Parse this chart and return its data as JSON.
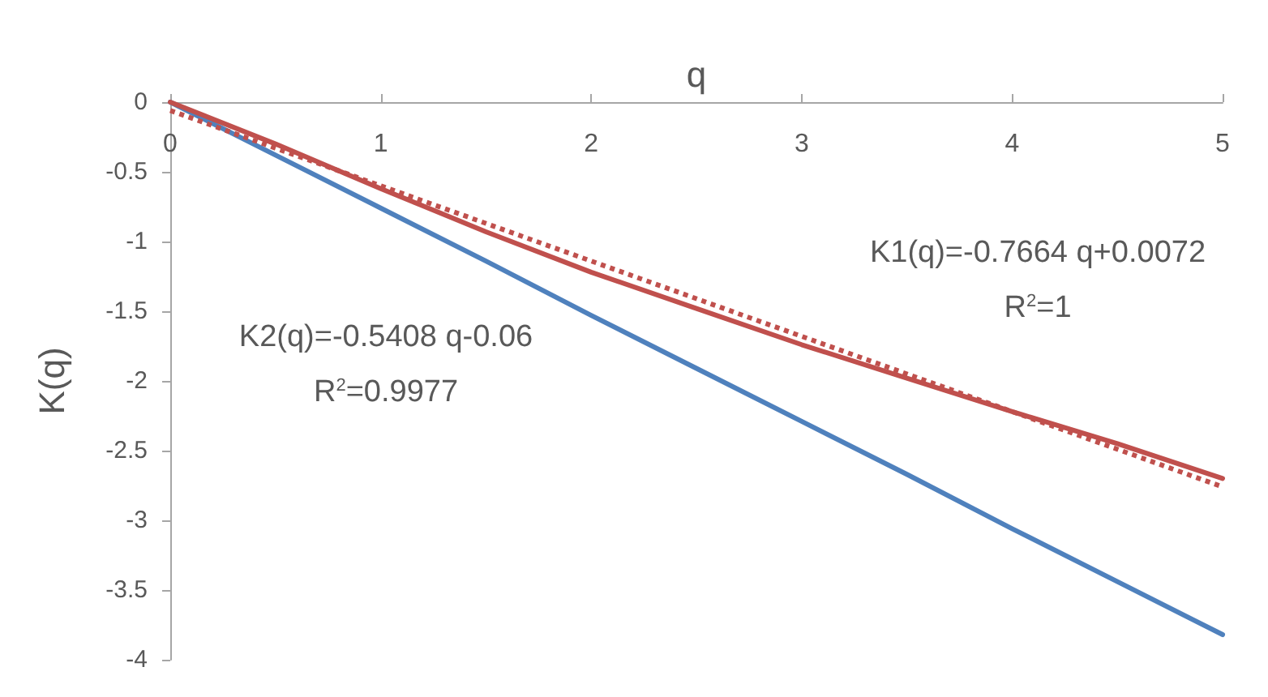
{
  "chart_data": {
    "type": "line",
    "xlabel": "q",
    "ylabel": "K(q)",
    "xlim": [
      0,
      5
    ],
    "xticks": [
      0,
      1,
      2,
      3,
      4,
      5
    ],
    "ylim": [
      -4,
      0
    ],
    "yticks": [
      0,
      -0.5,
      -1,
      -1.5,
      -2,
      -2.5,
      -3,
      -3.5,
      -4
    ],
    "grid": false,
    "marker": "none",
    "x": [
      0,
      0.5,
      1,
      1.5,
      2,
      2.5,
      3,
      3.5,
      4,
      4.5,
      5
    ],
    "series": [
      {
        "color": "#4f81bd",
        "values": [
          0,
          -0.38,
          -0.76,
          -1.14,
          -1.53,
          -1.91,
          -2.29,
          -2.67,
          -3.06,
          -3.44,
          -3.82
        ]
      },
      {
        "color": "#c0504d",
        "values": [
          0,
          -0.3,
          -0.62,
          -0.93,
          -1.22,
          -1.48,
          -1.74,
          -1.98,
          -2.22,
          -2.45,
          -2.7
        ]
      },
      {
        "type": "line",
        "line_style": "dotted",
        "color": "#c0504d",
        "x": [
          0,
          5
        ],
        "values": [
          -0.06,
          -2.76
        ]
      }
    ],
    "annotations": [
      "K1(q)=-0.7664 q+0.0072",
      "R$^{2}$=1",
      "K2(q)=-0.5408 q-0.06",
      "R$^{2}$=0.9977"
    ]
  }
}
